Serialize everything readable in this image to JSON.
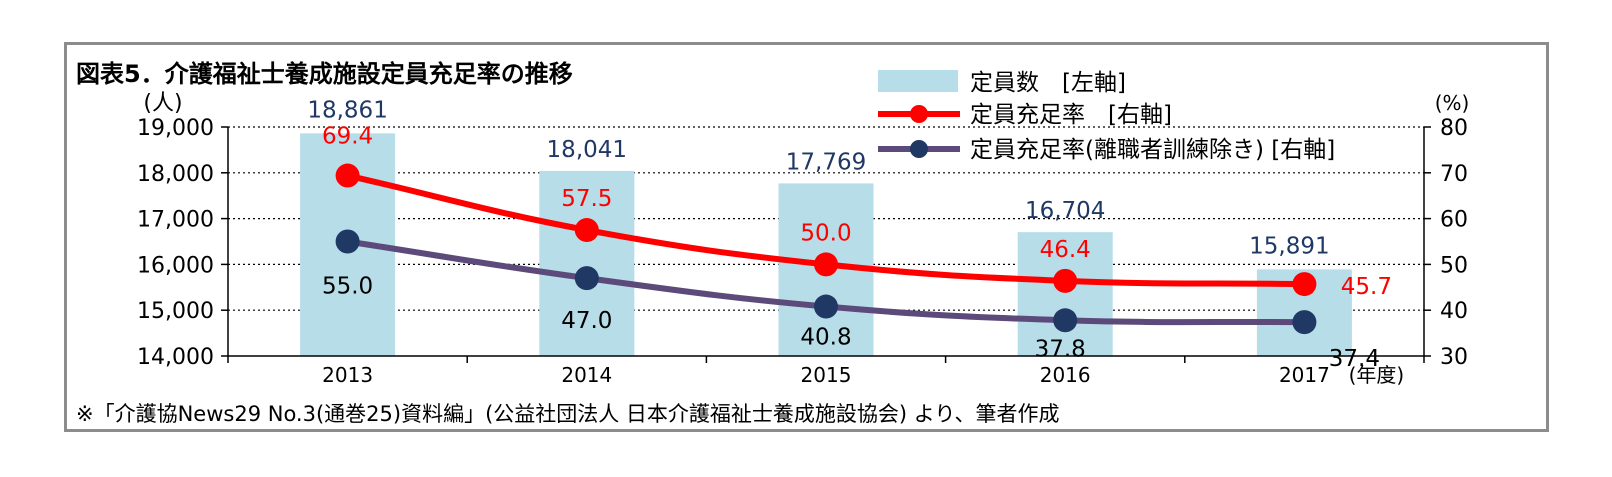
{
  "title": "図表5．介護福祉士養成施設定員充足率の推移",
  "footnote": "※「介護協News29 No.3(通巻25)資料編」(公益社団法人 日本介護福祉士養成施設協会) より、筆者作成",
  "colors": {
    "bar": "#b7dde8",
    "bar_label": "#1f3864",
    "rate_line": "#ff0000",
    "rate_label": "#ff0000",
    "rate_ex_line": "#5b4a7a",
    "rate_ex_marker": "#1f3864",
    "grid": "#000000"
  },
  "chart_data": {
    "type": "bar+line",
    "categories": [
      "2013",
      "2014",
      "2015",
      "2016",
      "2017"
    ],
    "x_unit_label": "(年度)",
    "y_left": {
      "unit_label": "(人)",
      "range": [
        14000,
        19000
      ],
      "ticks": [
        "14,000",
        "15,000",
        "16,000",
        "17,000",
        "18,000",
        "19,000"
      ]
    },
    "y_right": {
      "unit_label": "(%)",
      "range": [
        30,
        80
      ],
      "ticks": [
        "30",
        "40",
        "50",
        "60",
        "70",
        "80"
      ]
    },
    "grid": "horizontal-dotted",
    "legend_position": "top-right",
    "series": [
      {
        "name": "定員数　[左軸]",
        "kind": "bar",
        "axis": "left",
        "values": [
          18861,
          18041,
          17769,
          16704,
          15891
        ],
        "labels": [
          "18,861",
          "18,041",
          "17,769",
          "16,704",
          "15,891"
        ]
      },
      {
        "name": "定員充足率　[右軸]",
        "kind": "line",
        "axis": "right",
        "values": [
          69.4,
          57.5,
          50.0,
          46.4,
          45.7
        ],
        "labels": [
          "69.4",
          "57.5",
          "50.0",
          "46.4",
          "45.7"
        ]
      },
      {
        "name": "定員充足率(離職者訓練除き) [右軸]",
        "kind": "line",
        "axis": "right",
        "values": [
          55.0,
          47.0,
          40.8,
          37.8,
          37.4
        ],
        "labels": [
          "55.0",
          "47.0",
          "40.8",
          "37.8",
          "37.4"
        ]
      }
    ]
  }
}
